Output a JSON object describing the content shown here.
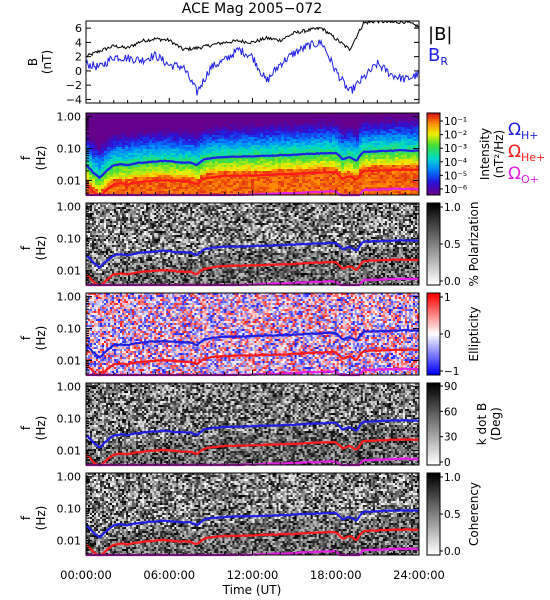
{
  "title": "ACE Mag 2005−072",
  "x_axis": {
    "label": "Time (UT)",
    "ticks": [
      "00:00:00",
      "06:00:00",
      "12:00:00",
      "18:00:00",
      "24:00:00"
    ],
    "range_hours": [
      0,
      24
    ]
  },
  "colors": {
    "B": "#000000",
    "BR": "#1f1fe6",
    "H": "#1f1fe6",
    "He": "#ff1a1a",
    "O": "#e61ee6"
  },
  "chart_data": [
    {
      "type": "line",
      "panel": "B-field",
      "ylabel": [
        "B",
        "(nT)"
      ],
      "ylim": [
        -4.5,
        7.0
      ],
      "ytick_labels": [
        "6",
        "4",
        "2",
        "0",
        "−2",
        "−4"
      ],
      "ytick_values": [
        6,
        4,
        2,
        0,
        -2,
        -4
      ],
      "legend": {
        "b": "|B|",
        "br": "B",
        "br_sub": "R"
      },
      "series": [
        {
          "name": "|B|",
          "x": [
            0,
            1,
            2,
            3,
            4,
            5,
            6,
            7,
            8,
            9,
            10,
            11,
            12,
            13,
            14,
            15,
            16,
            17,
            18,
            19,
            20,
            21,
            22,
            23,
            24
          ],
          "values": [
            2.0,
            2.8,
            3.5,
            3.2,
            4.2,
            4.5,
            4.3,
            3.0,
            3.2,
            3.6,
            4.0,
            4.2,
            4.0,
            4.6,
            4.3,
            5.3,
            5.7,
            6.0,
            4.5,
            3.0,
            6.7,
            7.0,
            6.8,
            6.9,
            6.2
          ]
        },
        {
          "name": "B_R",
          "x": [
            0,
            1,
            2,
            3,
            4,
            5,
            6,
            7,
            8,
            9,
            10,
            11,
            12,
            13,
            14,
            15,
            16,
            17,
            18,
            19,
            20,
            21,
            22,
            23,
            24
          ],
          "values": [
            1.0,
            0.5,
            2.0,
            1.8,
            1.5,
            2.2,
            0.8,
            0.6,
            -3.0,
            0.5,
            1.5,
            3.0,
            2.0,
            -1.5,
            1.0,
            2.5,
            3.5,
            4.0,
            0.0,
            -3.0,
            -1.0,
            1.0,
            -0.5,
            -1.2,
            -0.5
          ]
        }
      ]
    },
    {
      "type": "heatmap",
      "panel": "power-spectrum",
      "ylabel": [
        "f",
        "(Hz)"
      ],
      "ytick_labels": [
        "1.00",
        "0.10",
        "0.01"
      ],
      "colorbar": {
        "label": "Intensity",
        "unit": "(nT²/Hz)",
        "ticks": [
          "10⁻¹",
          "10⁻²",
          "10⁻³",
          "10⁻⁴",
          "10⁻⁵",
          "10⁻⁶"
        ]
      },
      "side_labels": [
        {
          "base": "Ω",
          "sub": "H+",
          "color": "#1f1fe6"
        },
        {
          "base": "Ω",
          "sub": "He+",
          "color": "#ff1a1a"
        },
        {
          "base": "Ω",
          "sub": "O+",
          "color": "#e61ee6"
        }
      ]
    },
    {
      "type": "heatmap",
      "panel": "polarization",
      "ylabel": [
        "f",
        "(Hz)"
      ],
      "ytick_labels": [
        "1.00",
        "0.10",
        "0.01"
      ],
      "colorbar": {
        "label": "% Polarization",
        "ticks": [
          "1.0",
          "0.5",
          "0.0"
        ]
      }
    },
    {
      "type": "heatmap",
      "panel": "ellipticity",
      "ylabel": [
        "f",
        "(Hz)"
      ],
      "ytick_labels": [
        "1.00",
        "0.10",
        "0.01"
      ],
      "colorbar": {
        "label": "Ellipticity",
        "ticks": [
          "1",
          "0",
          "−1"
        ]
      }
    },
    {
      "type": "heatmap",
      "panel": "k-dot-b",
      "ylabel": [
        "f",
        "(Hz)"
      ],
      "ytick_labels": [
        "1.00",
        "0.10",
        "0.01"
      ],
      "colorbar": {
        "label": "k dot B",
        "unit": "(Deg)",
        "ticks": [
          "90",
          "60",
          "30",
          "0"
        ]
      }
    },
    {
      "type": "heatmap",
      "panel": "coherency",
      "ylabel": [
        "f",
        "(Hz)"
      ],
      "ytick_labels": [
        "1.00",
        "0.10",
        "0.01"
      ],
      "colorbar": {
        "label": "Coherency",
        "ticks": [
          "1.0",
          "0.5",
          "0.0"
        ]
      }
    }
  ],
  "gyrofrequency_lines": {
    "x_hours": [
      0,
      0.5,
      1,
      1.5,
      2,
      2.5,
      3,
      3.5,
      4,
      4.5,
      5,
      5.5,
      6,
      6.5,
      7,
      7.5,
      8,
      8.5,
      9,
      10,
      11,
      12,
      13,
      14,
      15,
      16,
      17,
      17.5,
      18,
      18.5,
      19,
      19.5,
      20,
      21,
      22,
      23,
      24
    ],
    "H_plus_hz": [
      0.03,
      0.018,
      0.012,
      0.02,
      0.03,
      0.032,
      0.03,
      0.034,
      0.036,
      0.038,
      0.039,
      0.041,
      0.04,
      0.038,
      0.037,
      0.037,
      0.03,
      0.045,
      0.05,
      0.055,
      0.056,
      0.058,
      0.06,
      0.062,
      0.064,
      0.068,
      0.071,
      0.073,
      0.072,
      0.045,
      0.055,
      0.04,
      0.08,
      0.082,
      0.086,
      0.088,
      0.085
    ],
    "He_plus_hz": [
      0.0075,
      0.0045,
      0.003,
      0.005,
      0.0075,
      0.008,
      0.0075,
      0.0085,
      0.009,
      0.0095,
      0.0098,
      0.0102,
      0.01,
      0.0095,
      0.0092,
      0.0092,
      0.0075,
      0.0113,
      0.0125,
      0.0138,
      0.014,
      0.0145,
      0.015,
      0.0155,
      0.016,
      0.017,
      0.0178,
      0.0183,
      0.018,
      0.0113,
      0.0138,
      0.01,
      0.02,
      0.0205,
      0.0215,
      0.022,
      0.0213
    ],
    "O_plus_hz": [
      0.0019,
      0.0011,
      0.0008,
      0.0013,
      0.0019,
      0.002,
      0.0019,
      0.0021,
      0.0023,
      0.0024,
      0.0024,
      0.0026,
      0.0025,
      0.0024,
      0.0023,
      0.0023,
      0.0019,
      0.0028,
      0.0031,
      0.0034,
      0.0035,
      0.0036,
      0.0038,
      0.0039,
      0.004,
      0.0043,
      0.0044,
      0.0046,
      0.0045,
      0.0028,
      0.0034,
      0.0025,
      0.005,
      0.0051,
      0.0054,
      0.0055,
      0.0053
    ]
  }
}
